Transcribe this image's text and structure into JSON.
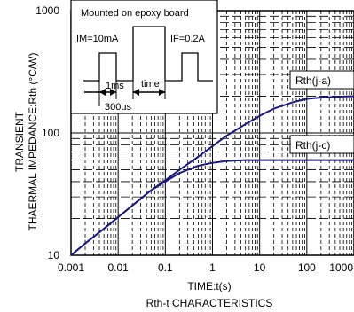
{
  "chart_data": {
    "type": "line",
    "title": "",
    "caption": "Rth-t CHARACTERISTICS",
    "xlabel": "TIME:t(s)",
    "ylabel_line1": "TRANSIENT",
    "ylabel_line2": "THAERMAL IMPEDANCE:Rth (°C/W)",
    "x_scale": "log",
    "y_scale": "log",
    "xlim": [
      0.001,
      1000
    ],
    "ylim": [
      10,
      1000
    ],
    "x_ticks": [
      "0.001",
      "0.01",
      "0.1",
      "1",
      "10",
      "100",
      "1000"
    ],
    "y_ticks": [
      "10",
      "100",
      "1000"
    ],
    "grid": true,
    "curve_color": "#1a1a7a",
    "series": [
      {
        "name": "Rth(j-a)",
        "x": [
          0.001,
          0.002,
          0.005,
          0.01,
          0.02,
          0.05,
          0.1,
          0.2,
          0.5,
          1,
          2,
          5,
          10,
          20,
          50,
          100,
          200,
          500,
          1000
        ],
        "y": [
          10,
          12.5,
          16.5,
          20.5,
          25.5,
          34,
          41,
          50,
          64,
          78,
          95,
          118,
          138,
          158,
          178,
          190,
          195,
          198,
          200
        ]
      },
      {
        "name": "Rth(j-c)",
        "x": [
          0.001,
          0.002,
          0.005,
          0.01,
          0.02,
          0.05,
          0.1,
          0.2,
          0.5,
          1,
          2,
          5,
          10,
          20,
          50,
          100,
          200,
          500,
          1000
        ],
        "y": [
          10,
          12.5,
          16.5,
          20.5,
          25.5,
          34,
          40,
          47,
          54,
          57,
          59,
          60,
          60,
          60,
          60,
          60,
          60,
          60,
          60
        ]
      }
    ],
    "inset": {
      "title": "Mounted on epoxy board",
      "im_label": "IM=10mA",
      "if_label": "IF=0.2A",
      "ms_label": "1ms",
      "time_label": "time",
      "us_label": "300us"
    }
  }
}
